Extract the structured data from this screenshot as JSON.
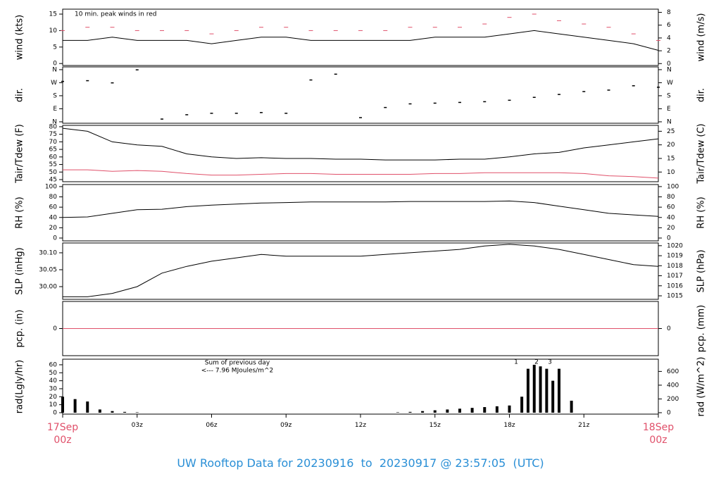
{
  "title": "UW Rooftop Data for 20230916  to  20230917 @ 23:57:05  (UTC)",
  "chart_data": [
    {
      "type": "line",
      "ylabel": "wind (kts)",
      "y2label": "wind (m/s)",
      "annotations": [
        {
          "text": "10 min. peak winds in red",
          "color": "#e0506a"
        }
      ],
      "x": [
        0,
        1,
        2,
        3,
        4,
        5,
        6,
        7,
        8,
        9,
        10,
        11,
        12,
        13,
        14,
        15,
        16,
        17,
        18,
        19,
        20,
        21,
        22,
        23,
        24
      ],
      "xlim": [
        0,
        24
      ],
      "ylim": [
        -0.6,
        16.5
      ],
      "yticks": [
        0,
        5,
        10,
        15
      ],
      "y2lim": [
        -0.3,
        8.5
      ],
      "y2ticks": [
        0,
        2,
        4,
        6,
        8
      ],
      "series": [
        {
          "color": "#000000",
          "style": "line",
          "values": [
            7,
            7,
            8,
            7,
            7,
            7,
            6,
            7,
            8,
            8,
            7,
            7,
            7,
            7,
            7,
            8,
            8,
            8,
            9,
            10,
            9,
            8,
            7,
            6,
            4
          ]
        },
        {
          "color": "#e0506a",
          "style": "dash",
          "values": [
            10,
            11,
            11,
            10,
            10,
            10,
            9,
            10,
            11,
            11,
            10,
            10,
            10,
            10,
            11,
            11,
            11,
            12,
            14,
            15,
            13,
            12,
            11,
            9,
            7
          ]
        }
      ]
    },
    {
      "type": "scatter",
      "ylabel": "dir.",
      "y2label": "dir.",
      "x": [
        0,
        1,
        2,
        3,
        4,
        5,
        6,
        7,
        8,
        9,
        10,
        11,
        12,
        13,
        14,
        15,
        16,
        17,
        18,
        19,
        20,
        21,
        22,
        23,
        24
      ],
      "xlim": [
        0,
        24
      ],
      "ylim": [
        -10,
        379
      ],
      "yticks": [
        {
          "value": 0,
          "label": "N"
        },
        {
          "value": 90,
          "label": "E"
        },
        {
          "value": 180,
          "label": "S"
        },
        {
          "value": 270,
          "label": "W"
        },
        {
          "value": 360,
          "label": "N"
        }
      ],
      "y2lim": [
        -10,
        379
      ],
      "y2ticks": [
        {
          "value": 0,
          "label": "N"
        },
        {
          "value": 90,
          "label": "E"
        },
        {
          "value": 180,
          "label": "S"
        },
        {
          "value": 270,
          "label": "W"
        },
        {
          "value": 360,
          "label": "N"
        }
      ],
      "series": [
        {
          "color": "#000000",
          "values": [
            280,
            285,
            270,
            360,
            20,
            50,
            60,
            60,
            65,
            60,
            290,
            330,
            30,
            100,
            125,
            130,
            135,
            140,
            150,
            170,
            190,
            210,
            220,
            250,
            240
          ]
        }
      ]
    },
    {
      "type": "line",
      "ylabel": "Tair/Tdew (F)",
      "y2label": "Tair/Tdew (C)",
      "x": [
        0,
        1,
        2,
        3,
        4,
        5,
        6,
        7,
        8,
        9,
        10,
        11,
        12,
        13,
        14,
        15,
        16,
        17,
        18,
        19,
        20,
        21,
        22,
        23,
        24
      ],
      "xlim": [
        0,
        24
      ],
      "ylim": [
        43.6,
        80.9
      ],
      "yticks": [
        45,
        50,
        55,
        60,
        65,
        70,
        75,
        80
      ],
      "y2lim": [
        6.44,
        27.17
      ],
      "y2ticks": [
        10,
        15,
        20,
        25
      ],
      "series": [
        {
          "color": "#000000",
          "values": [
            79,
            77,
            70,
            68,
            67,
            62,
            60,
            59,
            59.5,
            59,
            59,
            58.5,
            58.5,
            58,
            58,
            58,
            58.5,
            58.5,
            60,
            62,
            63,
            66,
            68,
            70,
            72
          ]
        },
        {
          "color": "#e0506a",
          "values": [
            51.5,
            51.5,
            50.5,
            51,
            50.5,
            49,
            48,
            48,
            48.5,
            49,
            49,
            48.5,
            48.5,
            48.5,
            48.5,
            49,
            49,
            49.5,
            49.5,
            49.5,
            49.5,
            49,
            47.5,
            47,
            46
          ]
        }
      ]
    },
    {
      "type": "line",
      "ylabel": "RH (%)",
      "y2label": "RH (%)",
      "x": [
        0,
        1,
        2,
        3,
        4,
        5,
        6,
        7,
        8,
        9,
        10,
        11,
        12,
        13,
        14,
        15,
        16,
        17,
        18,
        19,
        20,
        21,
        22,
        23,
        24
      ],
      "xlim": [
        0,
        24
      ],
      "ylim": [
        -5.5,
        104
      ],
      "yticks": [
        0,
        20,
        40,
        60,
        80,
        100
      ],
      "y2lim": [
        -5.5,
        104
      ],
      "y2ticks": [
        0,
        20,
        40,
        60,
        80,
        100
      ],
      "series": [
        {
          "color": "#000000",
          "values": [
            40,
            41,
            48,
            55,
            56,
            61,
            64,
            66,
            68,
            69,
            70,
            70,
            70,
            70,
            71,
            71,
            71,
            71,
            72,
            69,
            62,
            55,
            48,
            45,
            42
          ]
        }
      ]
    },
    {
      "type": "line",
      "ylabel": "SLP (inHg)",
      "y2label": "SLP (hPa)",
      "x": [
        0,
        1,
        2,
        3,
        4,
        5,
        6,
        7,
        8,
        9,
        10,
        11,
        12,
        13,
        14,
        15,
        16,
        17,
        18,
        19,
        20,
        21,
        22,
        23,
        24
      ],
      "xlim": [
        0,
        24
      ],
      "ylim": [
        29.9625,
        30.129
      ],
      "yticks": [
        {
          "value": 30,
          "label": "30.00"
        },
        30.05,
        {
          "value": 30.1,
          "label": "30.10"
        }
      ],
      "y2lim": [
        1014.65,
        1020.27
      ],
      "y2ticks": [
        1015,
        1016,
        1017,
        1018,
        1019,
        1020
      ],
      "series": [
        {
          "color": "#000000",
          "values": [
            29.97,
            29.97,
            29.98,
            30.0,
            30.04,
            30.06,
            30.075,
            30.085,
            30.095,
            30.09,
            30.09,
            30.09,
            30.09,
            30.095,
            30.1,
            30.105,
            30.11,
            30.12,
            30.125,
            30.12,
            30.11,
            30.095,
            30.08,
            30.065,
            30.06
          ]
        }
      ]
    },
    {
      "type": "line",
      "ylabel": "pcp. (in)",
      "y2label": "pcp. (mm)",
      "x": [
        0,
        24
      ],
      "xlim": [
        0,
        24
      ],
      "ylim": [
        -1,
        1
      ],
      "yticks": [
        0
      ],
      "y2lim": [
        -1,
        1
      ],
      "y2ticks": [
        0
      ],
      "series": [
        {
          "color": "#e0506a",
          "values": [
            0,
            0
          ]
        }
      ]
    },
    {
      "type": "bar",
      "ylabel": "rad(Lgly/hr)",
      "y2label": "rad (W/m^2)",
      "annotations": [
        {
          "text": "Sum of previous day",
          "color": "#9b30d0"
        },
        {
          "text": "<--- 7.96 MJoules/m^2",
          "color": "#9b30d0"
        },
        {
          "text": "1",
          "color": "#9b30d0"
        },
        {
          "text": "2",
          "color": "#9b30d0"
        },
        {
          "text": "3",
          "color": "#9b30d0"
        }
      ],
      "x": [
        0,
        0.5,
        1,
        1.5,
        2,
        2.5,
        3,
        13.5,
        14,
        14.5,
        15,
        15.5,
        16,
        16.5,
        17,
        17.5,
        18,
        18.5,
        18.75,
        19,
        19.25,
        19.5,
        19.75,
        20,
        20.5
      ],
      "xlim": [
        0,
        24
      ],
      "ylim": [
        -1.8,
        67
      ],
      "yticks": [
        0,
        10,
        20,
        30,
        40,
        50,
        60
      ],
      "y2lim": [
        -20.7,
        778
      ],
      "y2ticks": [
        0,
        200,
        400,
        600
      ],
      "xticks": [
        {
          "value": 0,
          "label": "17Sep\n00z"
        },
        {
          "value": 3,
          "label": "03z"
        },
        {
          "value": 6,
          "label": "06z"
        },
        {
          "value": 9,
          "label": "09z"
        },
        {
          "value": 12,
          "label": "12z"
        },
        {
          "value": 15,
          "label": "15z"
        },
        {
          "value": 18,
          "label": "18z"
        },
        {
          "value": 21,
          "label": "21z"
        },
        {
          "value": 24,
          "label": "18Sep\n00z"
        }
      ],
      "series": [
        {
          "color": "#000000",
          "values": [
            20,
            17,
            14,
            4,
            2,
            1,
            0.5,
            0.5,
            1,
            2,
            3,
            4,
            5,
            6,
            7,
            8,
            9,
            20,
            55,
            60,
            58,
            55,
            40,
            55,
            15
          ]
        }
      ]
    }
  ]
}
